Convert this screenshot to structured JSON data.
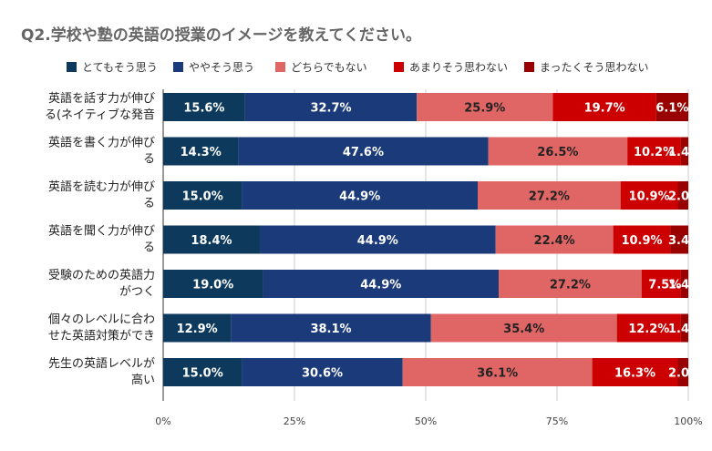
{
  "chart_data": {
    "type": "bar",
    "orientation": "horizontal",
    "stacked": "percent",
    "title": "Q2.学校や塾の英語の授業のイメージを教えてください。",
    "categories": [
      [
        "英語を話す力が伸び",
        "る(ネイティブな発音"
      ],
      [
        "英語を書く力が伸び",
        "る"
      ],
      [
        "英語を読む力が伸び",
        "る"
      ],
      [
        "英語を聞く力が伸び",
        "る"
      ],
      [
        "受験のための英語力",
        "がつく"
      ],
      [
        "個々のレベルに合わ",
        "せた英語対策ができ"
      ],
      [
        "先生の英語レベルが",
        "高い"
      ]
    ],
    "series": [
      {
        "name": "とてもそう思う",
        "color": "#0d3a5c",
        "values": [
          15.6,
          14.3,
          15.0,
          18.4,
          19.0,
          12.9,
          15.0
        ]
      },
      {
        "name": "ややそう思う",
        "color": "#1b3a7a",
        "values": [
          32.7,
          47.6,
          44.9,
          44.9,
          44.9,
          38.1,
          30.6
        ]
      },
      {
        "name": "どちらでもない",
        "color": "#e06666",
        "values": [
          25.9,
          26.5,
          27.2,
          22.4,
          27.2,
          35.4,
          36.1
        ]
      },
      {
        "name": "あまりそう思わない",
        "color": "#cc0000",
        "values": [
          19.7,
          10.2,
          10.9,
          10.9,
          7.5,
          12.2,
          16.3
        ]
      },
      {
        "name": "まったくそう思わない",
        "color": "#990000",
        "values": [
          6.1,
          1.4,
          2.0,
          3.4,
          1.4,
          1.4,
          2.0
        ]
      }
    ],
    "data_labels": [
      [
        "15.6%",
        "32.7%",
        "25.9%",
        "19.7%",
        "6.1%"
      ],
      [
        "14.3%",
        "47.6%",
        "26.5%",
        "10.2%",
        "1.4%"
      ],
      [
        "15.0%",
        "44.9%",
        "27.2%",
        "10.9%",
        "2.0%"
      ],
      [
        "18.4%",
        "44.9%",
        "22.4%",
        "10.9%",
        "3.4%"
      ],
      [
        "19.0%",
        "44.9%",
        "27.2%",
        "7.5%",
        "1.4%"
      ],
      [
        "12.9%",
        "38.1%",
        "35.4%",
        "12.2%",
        "1.4%"
      ],
      [
        "15.0%",
        "30.6%",
        "36.1%",
        "16.3%",
        "2.0%"
      ]
    ],
    "xlim": [
      0,
      100
    ],
    "x_ticks": [
      "0%",
      "25%",
      "50%",
      "75%",
      "100%"
    ],
    "legend_position": "top",
    "grid": "vertical"
  }
}
